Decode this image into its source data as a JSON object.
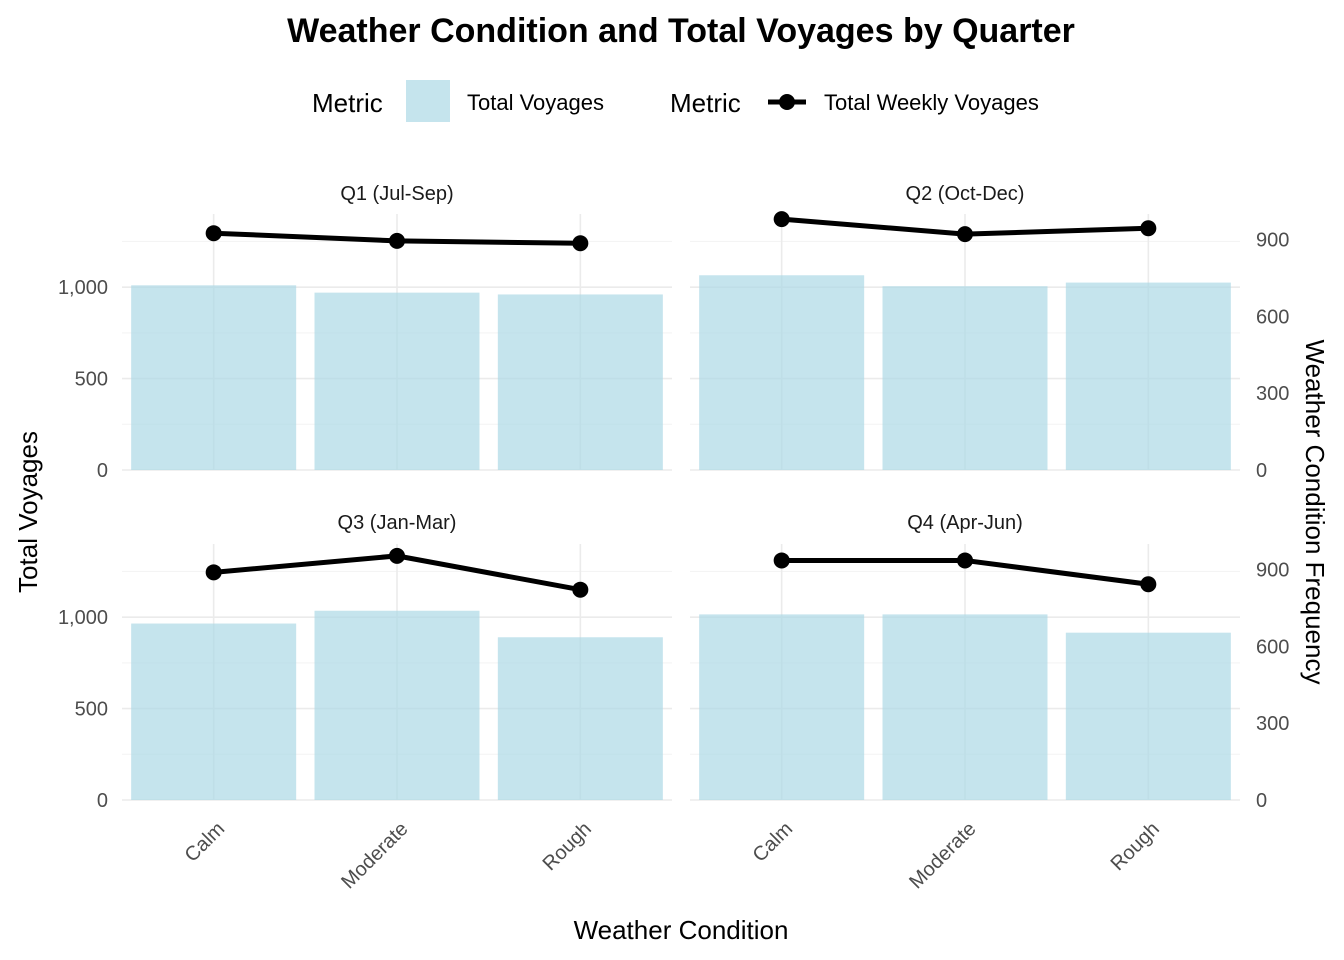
{
  "chart_data": {
    "type": "bar",
    "title": "Weather Condition and Total Voyages by Quarter",
    "xlabel": "Weather Condition",
    "ylabel": "Total Voyages",
    "y2label": "Weather Condition Frequency",
    "categories": [
      "Calm",
      "Moderate",
      "Rough"
    ],
    "ylim": [
      0,
      1400
    ],
    "y_ticks": [
      0,
      500,
      1000
    ],
    "y_tick_labels": [
      "0",
      "500",
      "1,000"
    ],
    "y2_ticks": [
      0,
      300,
      600,
      900
    ],
    "y2_tick_labels": [
      "0",
      "300",
      "600",
      "900"
    ],
    "y2_scale": 1.4,
    "legend": {
      "position": "top",
      "bar_group": {
        "title": "Metric",
        "label": "Total Voyages",
        "color": "#add8e6"
      },
      "line_group": {
        "title": "Metric",
        "label": "Total Weekly Voyages",
        "color": "#000000"
      }
    },
    "facets": [
      {
        "label": "Q1 (Jul-Sep)",
        "bars": [
          1010,
          970,
          960
        ],
        "line": [
          1295,
          1253,
          1240
        ]
      },
      {
        "label": "Q2 (Oct-Dec)",
        "bars": [
          1065,
          1005,
          1025
        ],
        "line": [
          1372,
          1290,
          1322
        ]
      },
      {
        "label": "Q3 (Jan-Mar)",
        "bars": [
          965,
          1035,
          890
        ],
        "line": [
          1245,
          1335,
          1150
        ]
      },
      {
        "label": "Q4 (Apr-Jun)",
        "bars": [
          1015,
          1015,
          915
        ],
        "line": [
          1310,
          1310,
          1180
        ]
      }
    ]
  }
}
